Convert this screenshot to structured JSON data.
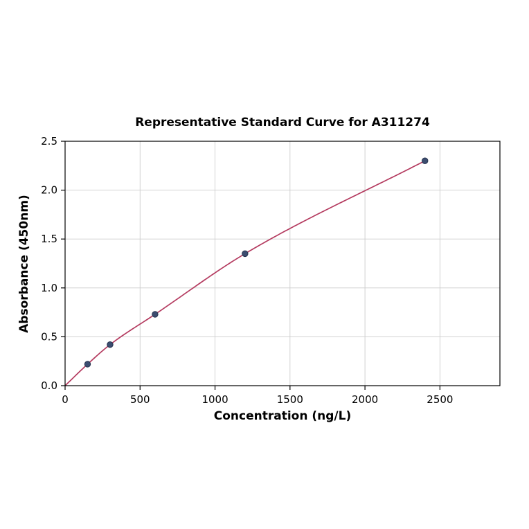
{
  "page": {
    "background": "#ffffff"
  },
  "chart_data": {
    "type": "scatter",
    "title": "Representative Standard Curve for A311274",
    "xlabel": "Concentration (ng/L)",
    "ylabel": "Absorbance (450nm)",
    "xlim": [
      0,
      2900
    ],
    "ylim": [
      0,
      2.5
    ],
    "grid": true,
    "legend": false,
    "x_ticks": {
      "values": [
        0,
        500,
        1000,
        1500,
        2000,
        2500
      ],
      "labels": [
        "0",
        "500",
        "1000",
        "1500",
        "2000",
        "2500"
      ]
    },
    "y_ticks": {
      "values": [
        0,
        0.5,
        1.0,
        1.5,
        2.0,
        2.5
      ],
      "labels": [
        "0.0",
        "0.5",
        "1.0",
        "1.5",
        "2.0",
        "2.5"
      ]
    },
    "points": {
      "x": [
        150,
        300,
        600,
        1200,
        2400
      ],
      "y": [
        0.22,
        0.42,
        0.73,
        1.35,
        2.3
      ]
    },
    "curve": {
      "x": [
        0,
        150,
        300,
        600,
        1200,
        2400
      ],
      "y": [
        0,
        0.22,
        0.42,
        0.73,
        1.35,
        2.3
      ]
    },
    "colors": {
      "curve": "#b43a5f",
      "point_fill": "#3c4d70",
      "point_edge": "#27344f",
      "grid": "#cccccc",
      "axis": "#000000"
    }
  }
}
